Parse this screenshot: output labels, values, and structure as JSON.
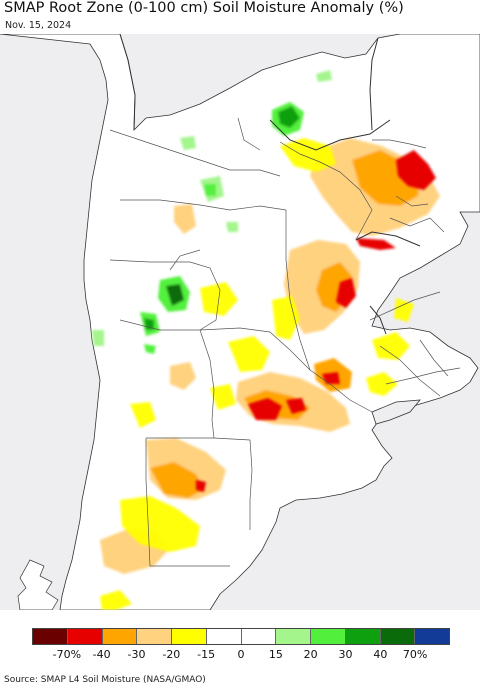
{
  "header": {
    "title": "SMAP Root Zone (0-100 cm) Soil Moisture Anomaly (%)",
    "date": "Nov. 15, 2024"
  },
  "colors": {
    "land": "#ffffff",
    "outside": "#eeedf0",
    "border": "#555555",
    "coast": "#333333"
  },
  "legend": {
    "ticks": [
      "-70%",
      "-40",
      "-30",
      "-20",
      "-15",
      "0",
      "15",
      "20",
      "30",
      "40",
      "70%"
    ],
    "swatches": [
      "#6b0000",
      "#e60000",
      "#ffa500",
      "#ffd27f",
      "#ffff00",
      "#ffffff",
      "#ffffff",
      "#a3f58c",
      "#52f03c",
      "#0ea00e",
      "#096b09",
      "#113b96"
    ]
  },
  "source": "Source: SMAP L4 Soil Moisture (NASA/GMAO)"
}
